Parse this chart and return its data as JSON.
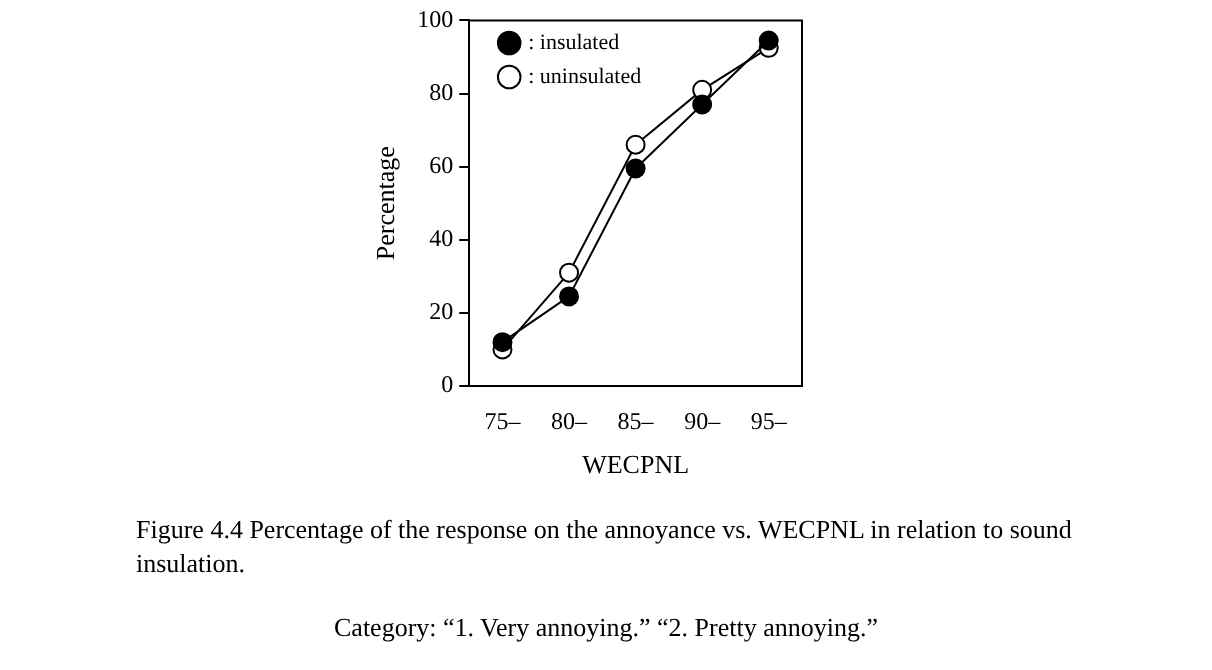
{
  "chart_data": {
    "type": "line",
    "xlabel": "WECPNL",
    "ylabel": "Percentage",
    "categories": [
      "75–",
      "80–",
      "85–",
      "90–",
      "95–"
    ],
    "ylim": [
      0,
      100
    ],
    "yticks": [
      0,
      20,
      40,
      60,
      80,
      100
    ],
    "grid": false,
    "legend": "top left",
    "marker": "circle",
    "line_style": "solid",
    "series": [
      {
        "name": ": insulated",
        "color": "#000000",
        "values": [
          12,
          24.5,
          59.5,
          77,
          94.5
        ]
      },
      {
        "name": ": uninsulated",
        "color": "#000000",
        "values": [
          10,
          31,
          66,
          81,
          92.5
        ]
      }
    ],
    "annotations": [
      "Figure 4.4 Percentage of the response on the annoyance vs. WECPNL in relation to sound insulation.",
      "Category: “1. Very annoying.” “2. Pretty annoying.”"
    ]
  }
}
